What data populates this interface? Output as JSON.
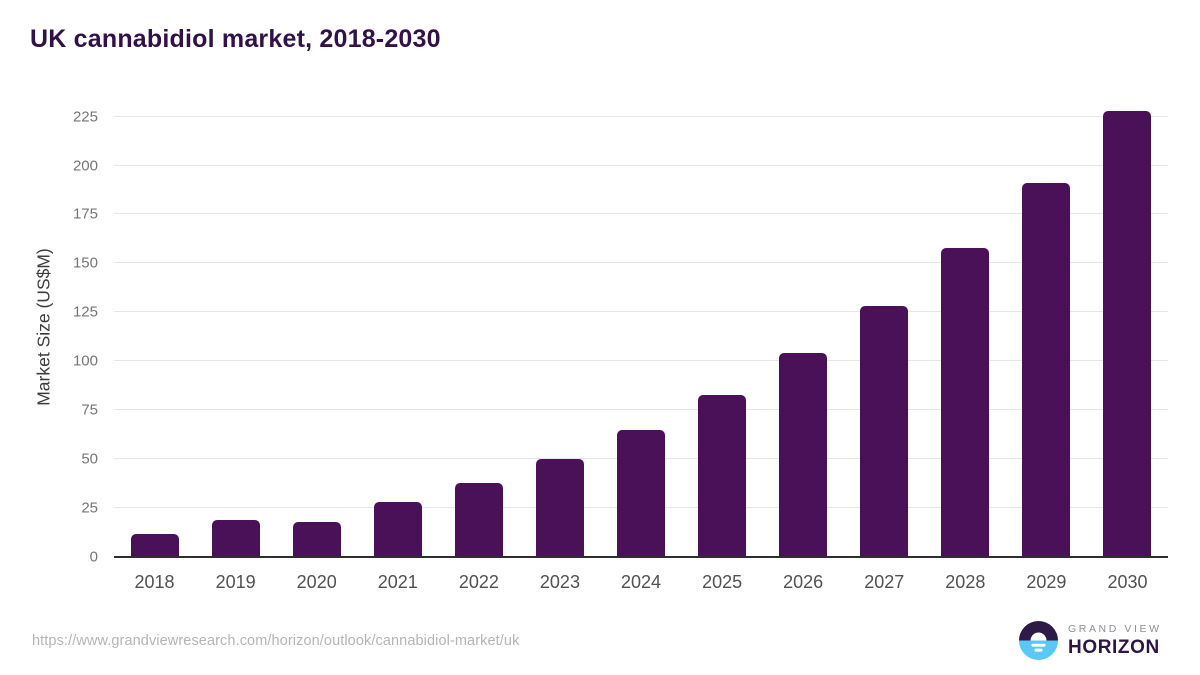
{
  "header": {
    "title": "UK cannabidiol market, 2018-2030"
  },
  "footer": {
    "source_url": "https://www.grandviewresearch.com/horizon/outlook/cannabidiol-market/uk",
    "branding": {
      "logo_icon": "horizon-sun-icon",
      "name_top": "GRAND VIEW",
      "name_bottom": "HORIZON"
    }
  },
  "colors": {
    "bar": "#4a1159",
    "title": "#321048",
    "gridline": "#e7e7e9",
    "axis_line": "#2e2e30",
    "y_tick_label": "#767676",
    "x_tick_label": "#515153",
    "source_url": "#b5b5b5",
    "logo_purple": "#2e1a47",
    "logo_blue": "#5ac8f5"
  },
  "chart_data": {
    "type": "bar",
    "title": "UK cannabidiol market, 2018-2030",
    "categories": [
      "2018",
      "2019",
      "2020",
      "2021",
      "2022",
      "2023",
      "2024",
      "2025",
      "2026",
      "2027",
      "2028",
      "2029",
      "2030"
    ],
    "values": [
      12,
      19,
      18,
      28,
      38,
      50,
      65,
      83,
      104,
      128,
      158,
      191,
      228
    ],
    "xlabel": "",
    "ylabel": "Market Size (US$M)",
    "ylim": [
      0,
      235
    ],
    "yticks": [
      0,
      25,
      50,
      75,
      100,
      125,
      150,
      175,
      200,
      225
    ],
    "grid": true,
    "legend": false,
    "bar_color": "#4a1159"
  }
}
